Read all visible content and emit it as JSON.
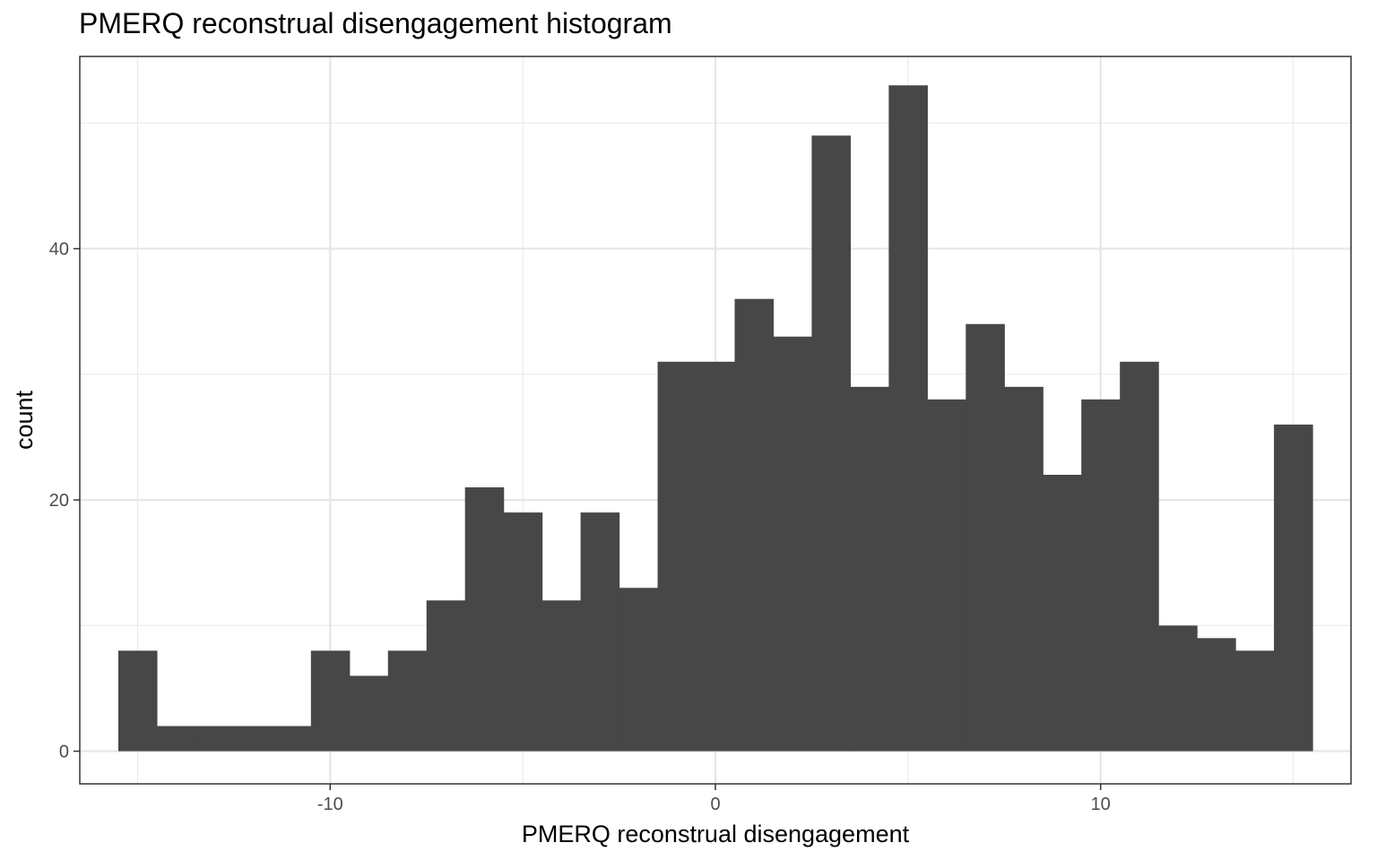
{
  "chart_data": {
    "type": "bar",
    "title": "PMERQ reconstrual disengagement histogram",
    "xlabel": "PMERQ reconstrual disengagement",
    "ylabel": "count",
    "xlim": [
      -16.5,
      16.5
    ],
    "ylim": [
      -2.6,
      55.3
    ],
    "bin_width": 1,
    "x_ticks": [
      -10,
      0,
      10
    ],
    "y_ticks": [
      0,
      20,
      40
    ],
    "x_tick_labels": [
      "-10",
      "0",
      "10"
    ],
    "y_tick_labels": [
      "0",
      "20",
      "40"
    ],
    "grid": true,
    "bar_color": "#474747",
    "bins": [
      {
        "x": -15,
        "count": 8
      },
      {
        "x": -14,
        "count": 2
      },
      {
        "x": -13,
        "count": 2
      },
      {
        "x": -12,
        "count": 2
      },
      {
        "x": -11,
        "count": 2
      },
      {
        "x": -10,
        "count": 8
      },
      {
        "x": -9,
        "count": 6
      },
      {
        "x": -8,
        "count": 8
      },
      {
        "x": -7,
        "count": 12
      },
      {
        "x": -6,
        "count": 21
      },
      {
        "x": -5,
        "count": 19
      },
      {
        "x": -4,
        "count": 12
      },
      {
        "x": -3,
        "count": 19
      },
      {
        "x": -2,
        "count": 13
      },
      {
        "x": -1,
        "count": 31
      },
      {
        "x": 0,
        "count": 31
      },
      {
        "x": 1,
        "count": 36
      },
      {
        "x": 2,
        "count": 33
      },
      {
        "x": 3,
        "count": 49
      },
      {
        "x": 4,
        "count": 29
      },
      {
        "x": 5,
        "count": 53
      },
      {
        "x": 6,
        "count": 28
      },
      {
        "x": 7,
        "count": 34
      },
      {
        "x": 8,
        "count": 29
      },
      {
        "x": 9,
        "count": 22
      },
      {
        "x": 10,
        "count": 28
      },
      {
        "x": 11,
        "count": 31
      },
      {
        "x": 12,
        "count": 10
      },
      {
        "x": 13,
        "count": 9
      },
      {
        "x": 14,
        "count": 8
      },
      {
        "x": 15,
        "count": 26
      }
    ]
  }
}
